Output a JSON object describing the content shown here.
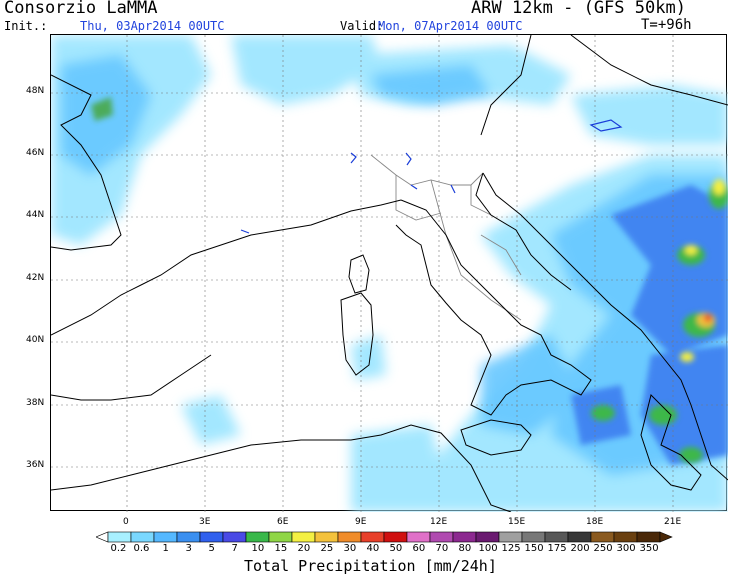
{
  "header": {
    "title": "Consorzio LaMMA",
    "model": "ARW 12km - (GFS 50km)",
    "init_label": "Init.:",
    "init_value": "Thu, 03Apr2014 00UTC",
    "valid_label": "Valid:",
    "valid_value": "Mon, 07Apr2014 00UTC",
    "forecast_step": "T=+96h"
  },
  "map": {
    "lat_ticks": [
      "48N",
      "46N",
      "44N",
      "42N",
      "40N",
      "38N",
      "36N"
    ],
    "lon_ticks": [
      "0",
      "3E",
      "6E",
      "9E",
      "12E",
      "15E",
      "18E",
      "21E"
    ],
    "background": "#ffffff",
    "coast_color": "#000000",
    "border_color": "#888888",
    "grid": true
  },
  "colorbar": {
    "title": "Total Precipitation [mm/24h]",
    "labels": [
      "0.2",
      "0.6",
      "1",
      "3",
      "5",
      "7",
      "10",
      "15",
      "20",
      "25",
      "30",
      "40",
      "50",
      "60",
      "70",
      "80",
      "100",
      "125",
      "150",
      "175",
      "200",
      "250",
      "300",
      "350"
    ],
    "colors": [
      "#a8f0ff",
      "#7ad8ff",
      "#55b8ff",
      "#3a8ff0",
      "#3060ee",
      "#4a4ae6",
      "#39b84a",
      "#8fd646",
      "#f4f043",
      "#f4c23c",
      "#f08c2a",
      "#e8402a",
      "#d01010",
      "#e070c8",
      "#b04ab0",
      "#8c2890",
      "#6a1a70",
      "#a0a0a0",
      "#787878",
      "#585858",
      "#383838",
      "#8a5a20",
      "#6a4010",
      "#4a2808"
    ]
  }
}
